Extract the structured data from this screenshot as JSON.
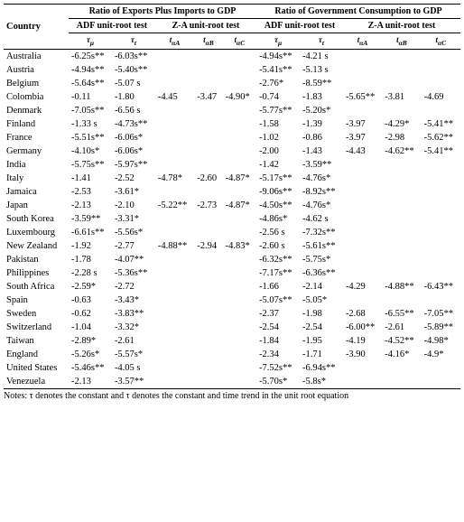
{
  "header": {
    "country": "Country",
    "group1": "Ratio of Exports Plus Imports to GDP",
    "group2": "Ratio of Government Consumption to GDP",
    "adf": "ADF unit-root test",
    "za": "Z-A unit-root test",
    "tau_mu": "τ",
    "tau_t": "τ",
    "tau_mu_sub": "μ",
    "tau_t_sub": "t",
    "t_aA": "t",
    "t_aB": "t",
    "t_aC": "t",
    "t_sub_aA": "αA",
    "t_sub_aB": "αB",
    "t_sub_aC": "αC"
  },
  "rows": [
    {
      "c": "Australia",
      "a": "-6.25s**",
      "b": "-6.03s**",
      "x": "",
      "y": "",
      "z": "",
      "d": "-4.94s**",
      "e": "-4.21 s",
      "p": "",
      "q": "",
      "r": ""
    },
    {
      "c": "Austria",
      "a": "-4.94s**",
      "b": "-5.40s**",
      "x": "",
      "y": "",
      "z": "",
      "d": "-5.41s**",
      "e": "-5.13 s",
      "p": "",
      "q": "",
      "r": ""
    },
    {
      "c": "Belgium",
      "a": "-5.64s**",
      "b": "-5.07 s",
      "x": "",
      "y": "",
      "z": "",
      "d": "-2.76*",
      "e": "-8.59**",
      "p": "",
      "q": "",
      "r": ""
    },
    {
      "c": "Colombia",
      "a": "-0.11",
      "b": "-1.80",
      "x": "-4.45",
      "y": "-3.47",
      "z": "-4.90*",
      "d": "-0.74",
      "e": "-1.83",
      "p": "-5.65**",
      "q": "-3.81",
      "r": "-4.69"
    },
    {
      "c": "Denmark",
      "a": "-7.05s**",
      "b": "-6.56 s",
      "x": "",
      "y": "",
      "z": "",
      "d": "-5.77s**",
      "e": "-5.20s*",
      "p": "",
      "q": "",
      "r": ""
    },
    {
      "c": "Finland",
      "a": "-1.33 s",
      "b": "-4.73s**",
      "x": "",
      "y": "",
      "z": "",
      "d": "-1.58",
      "e": "-1.39",
      "p": "-3.97",
      "q": "-4.29*",
      "r": "-5.41**"
    },
    {
      "c": "France",
      "a": "-5.51s**",
      "b": "-6.06s*",
      "x": "",
      "y": "",
      "z": "",
      "d": "-1.02",
      "e": "-0.86",
      "p": "-3.97",
      "q": "-2.98",
      "r": "-5.62**"
    },
    {
      "c": "Germany",
      "a": "-4.10s*",
      "b": "-6.06s*",
      "x": "",
      "y": "",
      "z": "",
      "d": "-2.00",
      "e": "-1.43",
      "p": "-4.43",
      "q": "-4.62**",
      "r": "-5.41**"
    },
    {
      "c": "India",
      "a": "-5.75s**",
      "b": "-5.97s**",
      "x": "",
      "y": "",
      "z": "",
      "d": "-1.42",
      "e": "-3.59**",
      "p": "",
      "q": "",
      "r": ""
    },
    {
      "c": "Italy",
      "a": "-1.41",
      "b": "-2.52",
      "x": "-4.78*",
      "y": "-2.60",
      "z": "-4.87*",
      "d": "-5.17s**",
      "e": "-4.76s*",
      "p": "",
      "q": "",
      "r": ""
    },
    {
      "c": "Jamaica",
      "a": "-2.53",
      "b": "-3.61*",
      "x": "",
      "y": "",
      "z": "",
      "d": "-9.06s**",
      "e": "-8.92s**",
      "p": "",
      "q": "",
      "r": ""
    },
    {
      "c": "Japan",
      "a": "-2.13",
      "b": "-2.10",
      "x": "-5.22**",
      "y": "-2.73",
      "z": "-4.87*",
      "d": "-4.50s**",
      "e": "-4.76s*",
      "p": "",
      "q": "",
      "r": ""
    },
    {
      "c": "South Korea",
      "a": "-3.59**",
      "b": "-3.31*",
      "x": "",
      "y": "",
      "z": "",
      "d": "-4.86s*",
      "e": "-4.62 s",
      "p": "",
      "q": "",
      "r": ""
    },
    {
      "c": "Luxembourg",
      "a": "-6.61s**",
      "b": "-5.56s*",
      "x": "",
      "y": "",
      "z": "",
      "d": "-2.56 s",
      "e": "-7.32s**",
      "p": "",
      "q": "",
      "r": ""
    },
    {
      "c": "New Zealand",
      "a": "-1.92",
      "b": "-2.77",
      "x": "-4.88**",
      "y": "-2.94",
      "z": "-4.83*",
      "d": "-2.60 s",
      "e": "-5.61s**",
      "p": "",
      "q": "",
      "r": ""
    },
    {
      "c": "Pakistan",
      "a": "-1.78",
      "b": "-4.07**",
      "x": "",
      "y": "",
      "z": "",
      "d": "-6.32s**",
      "e": "-5.75s*",
      "p": "",
      "q": "",
      "r": ""
    },
    {
      "c": "Philippines",
      "a": "-2.28 s",
      "b": "-5.36s**",
      "x": "",
      "y": "",
      "z": "",
      "d": "-7.17s**",
      "e": "-6.36s**",
      "p": "",
      "q": "",
      "r": ""
    },
    {
      "c": "South Africa",
      "a": "-2.59*",
      "b": "-2.72",
      "x": "",
      "y": "",
      "z": "",
      "d": "-1.66",
      "e": "-2.14",
      "p": "-4.29",
      "q": "-4.88**",
      "r": "-6.43**"
    },
    {
      "c": "Spain",
      "a": "-0.63",
      "b": "-3.43*",
      "x": "",
      "y": "",
      "z": "",
      "d": "-5.07s**",
      "e": "-5.05*",
      "p": "",
      "q": "",
      "r": ""
    },
    {
      "c": "Sweden",
      "a": "-0.62",
      "b": "-3.83**",
      "x": "",
      "y": "",
      "z": "",
      "d": "-2.37",
      "e": "-1.98",
      "p": "-2.68",
      "q": "-6.55**",
      "r": "-7.05**"
    },
    {
      "c": "Switzerland",
      "a": "-1.04",
      "b": "-3.32*",
      "x": "",
      "y": "",
      "z": "",
      "d": "-2.54",
      "e": "-2.54",
      "p": "-6.00**",
      "q": "-2.61",
      "r": "-5.89**"
    },
    {
      "c": "Taiwan",
      "a": "-2.89*",
      "b": "-2.61",
      "x": "",
      "y": "",
      "z": "",
      "d": "-1.84",
      "e": "-1.95",
      "p": "-4.19",
      "q": "-4.52**",
      "r": "-4.98*"
    },
    {
      "c": "England",
      "a": "-5.26s*",
      "b": "-5.57s*",
      "x": "",
      "y": "",
      "z": "",
      "d": "-2.34",
      "e": "-1.71",
      "p": "-3.90",
      "q": "-4.16*",
      "r": "-4.9*"
    },
    {
      "c": "United States",
      "a": "-5.46s**",
      "b": "-4.05 s",
      "x": "",
      "y": "",
      "z": "",
      "d": "-7.52s**",
      "e": "-6.94s**",
      "p": "",
      "q": "",
      "r": ""
    },
    {
      "c": "Venezuela",
      "a": "-2.13",
      "b": "-3.57**",
      "x": "",
      "y": "",
      "z": "",
      "d": "-5.70s*",
      "e": "-5.8s*",
      "p": "",
      "q": "",
      "r": ""
    }
  ],
  "notes": "Notes:  τ    denotes the constant and  τ    denotes the constant and time trend in the unit root equation"
}
